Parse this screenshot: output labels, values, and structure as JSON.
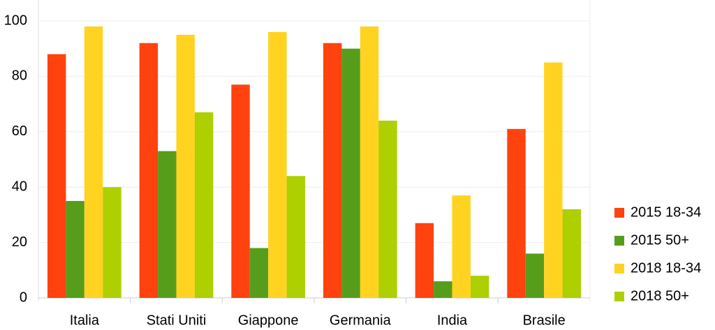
{
  "chart_data": {
    "type": "bar",
    "categories": [
      "Italia",
      "Stati Uniti",
      "Giappone",
      "Germania",
      "India",
      "Brasile"
    ],
    "series": [
      {
        "name": "2015 18-34",
        "color": "#ff420e",
        "values": [
          88,
          92,
          77,
          92,
          27,
          61
        ]
      },
      {
        "name": "2015 50+",
        "color": "#579d1c",
        "values": [
          35,
          53,
          18,
          90,
          6,
          16
        ]
      },
      {
        "name": "2018 18-34",
        "color": "#ffd320",
        "values": [
          98,
          95,
          96,
          98,
          37,
          85
        ]
      },
      {
        "name": "2018 50+",
        "color": "#aecf00",
        "values": [
          40,
          67,
          44,
          64,
          8,
          32
        ]
      }
    ],
    "ylim": [
      0,
      100
    ],
    "yticks": [
      0,
      20,
      40,
      60,
      80,
      100
    ],
    "grid": true,
    "legend": "right"
  }
}
